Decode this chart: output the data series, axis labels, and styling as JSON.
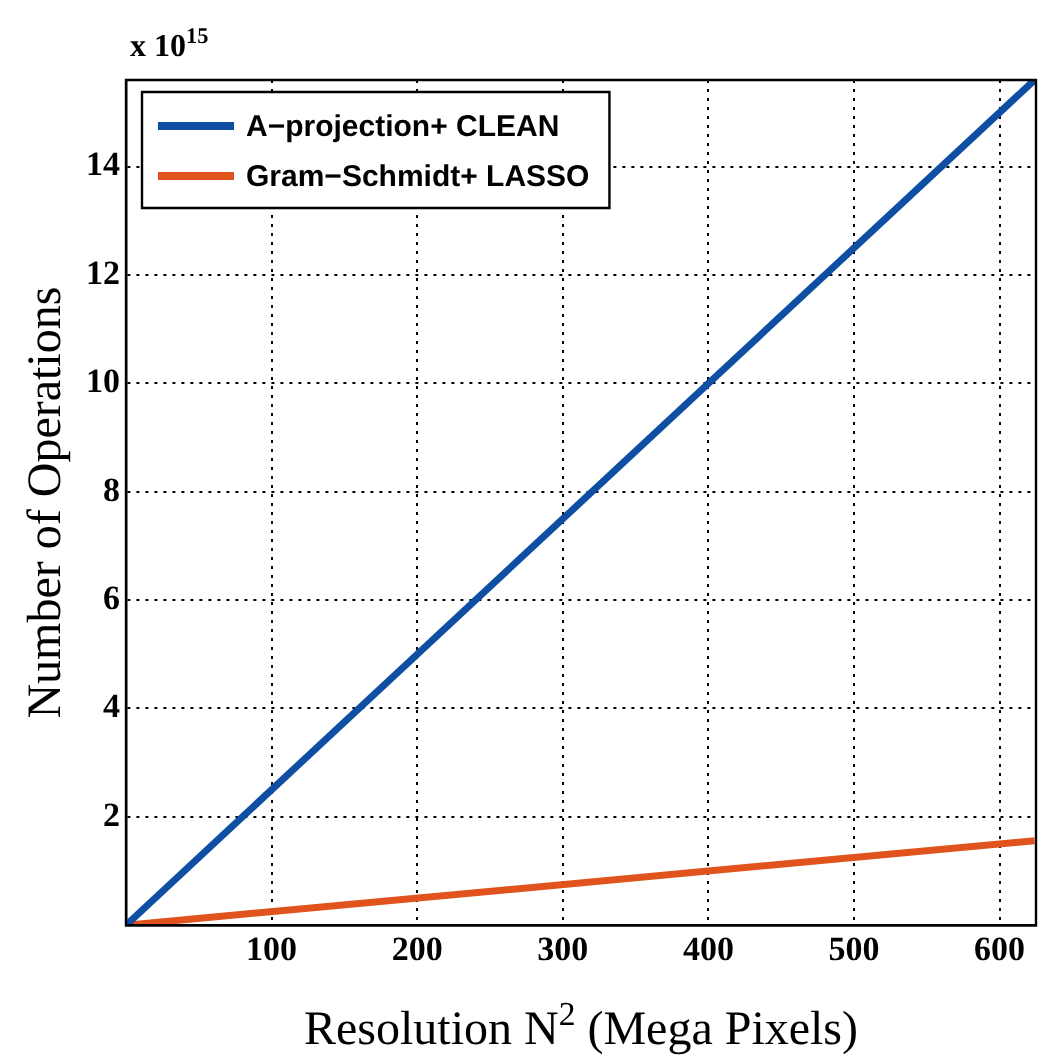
{
  "chart_data": {
    "type": "line",
    "xlabel": "Resolution N$^{2}$ (Mega Pixels)",
    "ylabel": "Number of Operations",
    "annotations": [
      "x 10$^{15}$"
    ],
    "x": [
      0,
      624
    ],
    "series": [
      {
        "name": "A−projection+ CLEAN",
        "color": "#0e4fa4",
        "values": [
          0,
          15.6
        ]
      },
      {
        "name": "Gram−Schmidt+ LASSO",
        "color": "#e0531c",
        "values": [
          0,
          1.56
        ]
      }
    ],
    "xlim": [
      0,
      625
    ],
    "ylim": [
      0,
      15.6
    ],
    "xticks": [
      100,
      200,
      300,
      400,
      500,
      600
    ],
    "yticks": [
      2,
      4,
      6,
      8,
      10,
      12,
      14
    ],
    "grid": true,
    "legend": "top left",
    "marker": "none",
    "line_style": "solid"
  }
}
